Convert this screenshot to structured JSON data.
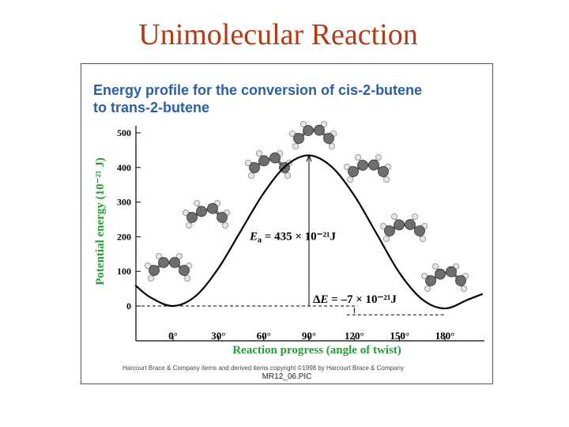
{
  "slide": {
    "title": "Unimolecular Reaction"
  },
  "figure": {
    "credit": "Harcourt Brace & Company items and derived items copyright ©1998 by Harcourt Brace & Company",
    "filename": "MR12_06.PIC"
  },
  "chart_data": {
    "type": "line",
    "title": "Energy profile for the conversion of cis-2-butene to trans-2-butene",
    "title_lines": [
      "Energy profile for the conversion of cis-2-butene",
      "to trans-2-butene"
    ],
    "xlabel": "Reaction progress (angle of twist)",
    "ylabel": "Potential energy (10⁻²¹ J)",
    "xticks": [
      0,
      30,
      60,
      90,
      120,
      150,
      180
    ],
    "xtick_labels": [
      "0°",
      "30°",
      "60°",
      "90°",
      "120°",
      "150°",
      "180°"
    ],
    "yticks": [
      0,
      100,
      200,
      300,
      400,
      500
    ],
    "ytick_labels": [
      "0",
      "100",
      "200",
      "300",
      "400",
      "500"
    ],
    "xlim": [
      -30,
      210
    ],
    "ylim": [
      -50,
      520
    ],
    "series": [
      {
        "x": [
          -25,
          -15,
          0,
          15,
          30,
          45,
          60,
          75,
          90,
          105,
          120,
          135,
          150,
          165,
          180,
          195,
          205
        ],
        "y": [
          60,
          25,
          0,
          29,
          109,
          218,
          326,
          406,
          435,
          402,
          319,
          207,
          95,
          19,
          -7,
          18,
          35
        ]
      }
    ],
    "annotations": {
      "ea": {
        "symbol": "E",
        "sub": "a",
        "text": " = 435 × 10⁻²¹J"
      },
      "de": {
        "prefix": "Δ",
        "symbol": "E",
        "text": " = –7 × 10⁻²¹J"
      }
    },
    "colors": {
      "axis_label": "#2a9a3a",
      "title": "#2a5fa8",
      "curve": "#000000"
    }
  },
  "molecules": [
    {
      "label": "cis-2-butene (0°)"
    },
    {
      "label": "twisted 30°"
    },
    {
      "label": "twisted 60°"
    },
    {
      "label": "transition state (90°)"
    },
    {
      "label": "twisted 120°"
    },
    {
      "label": "twisted 150°"
    },
    {
      "label": "trans-2-butene (180°)"
    }
  ]
}
